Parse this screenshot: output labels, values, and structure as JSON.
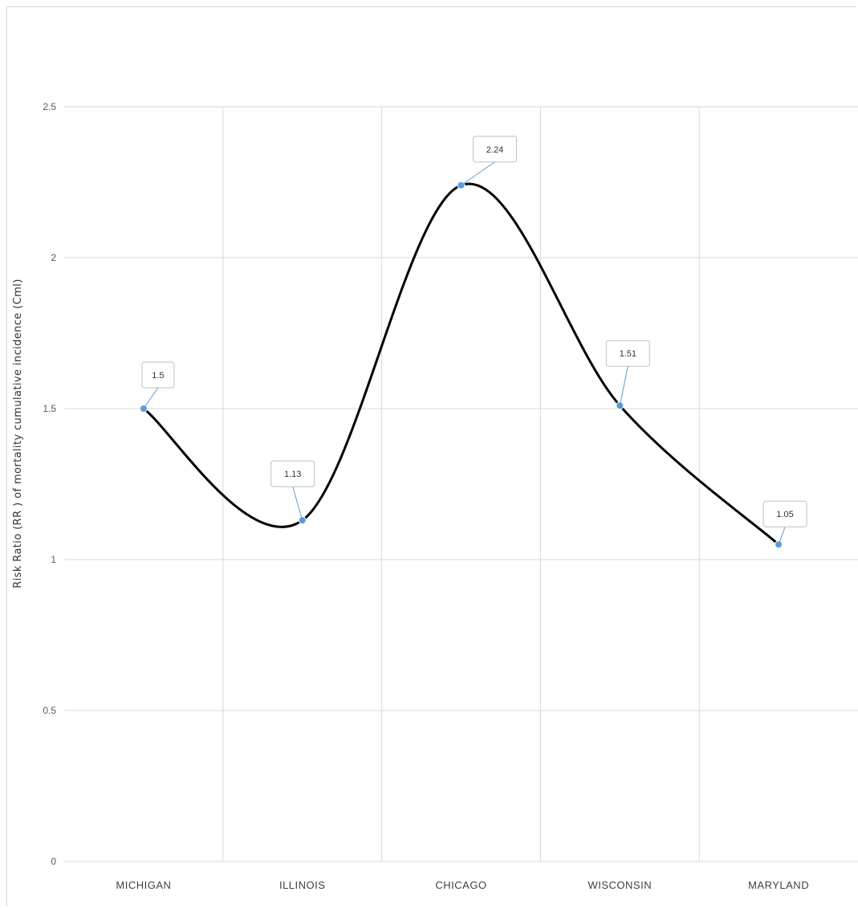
{
  "chart_data": {
    "type": "line",
    "smooth": true,
    "title": "",
    "xlabel": "",
    "ylabel": "Risk Ratio  (RR ) of mortality  cumulative incidence  (Cml)",
    "categories": [
      "MICHIGAN",
      "ILLINOIS",
      "CHICAGO",
      "WISCONSIN",
      "MARYLAND"
    ],
    "series": [
      {
        "values": [
          1.5,
          1.13,
          2.24,
          1.51,
          1.05
        ]
      }
    ],
    "data_labels": [
      "1.5",
      "1.13",
      "2.24",
      "1.51",
      "1.05"
    ],
    "ylim": [
      0,
      2.5
    ],
    "yticks": [
      0,
      0.5,
      1,
      1.5,
      2,
      2.5
    ],
    "ytick_labels": [
      "0",
      "0.5",
      "1",
      "1.5",
      "2",
      "2.5"
    ],
    "grid": true,
    "legend": "none",
    "colors": {
      "line": "#000000",
      "marker": "#5b9bd5",
      "grid": "#d9d9d9",
      "label_border": "#bfbfbf"
    }
  }
}
